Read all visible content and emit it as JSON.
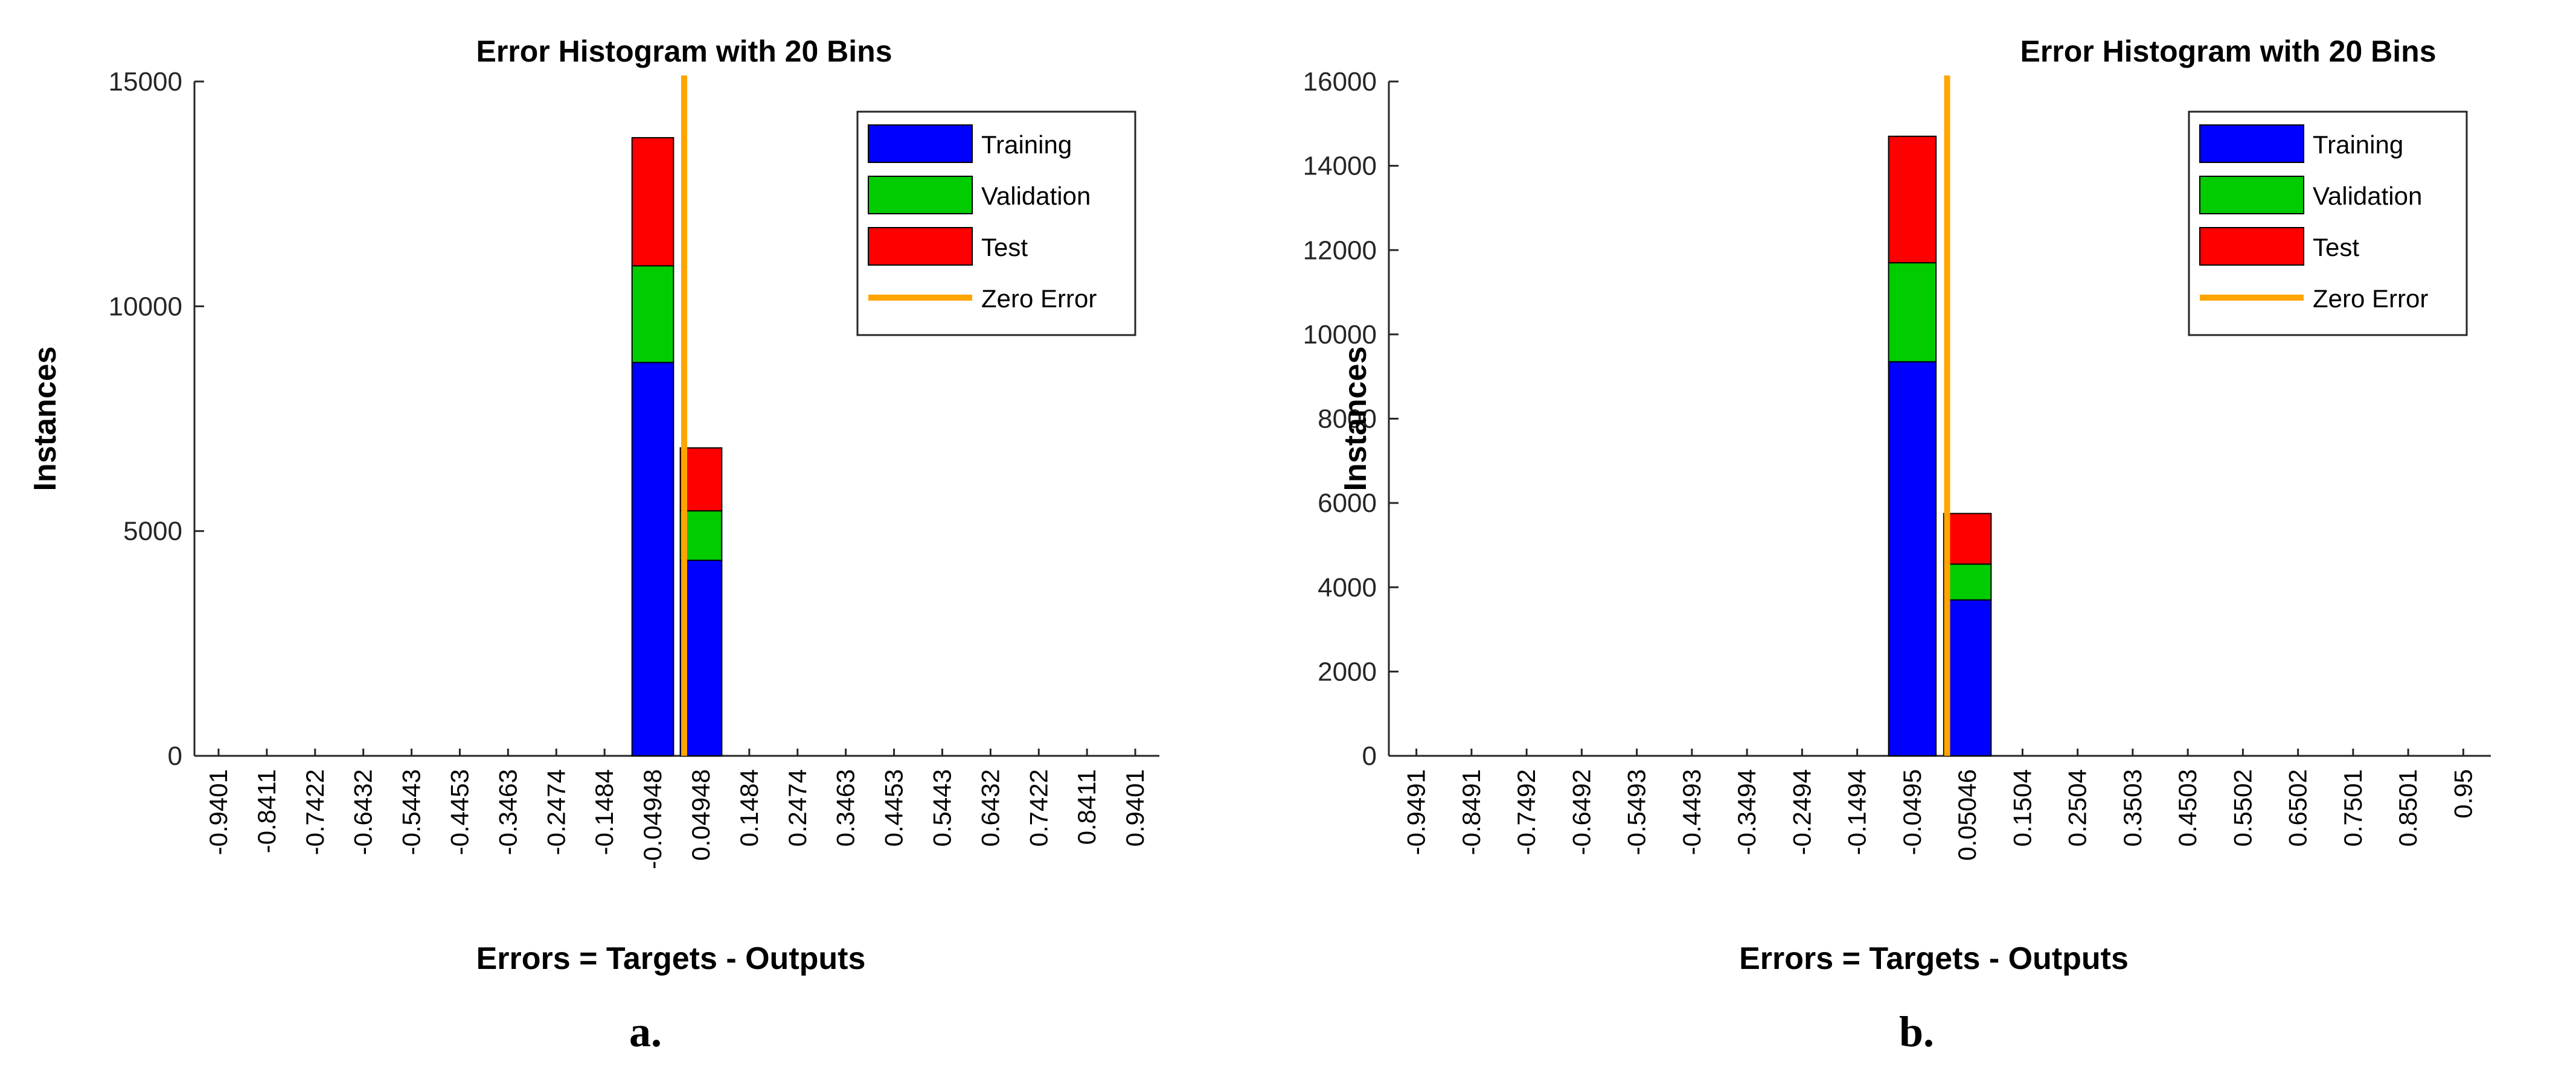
{
  "chart_data": [
    {
      "type": "bar",
      "stacked": true,
      "title": "Error Histogram with 20 Bins",
      "xlabel": "Errors = Targets - Outputs",
      "ylabel": "Instances",
      "ylim": [
        0,
        15000
      ],
      "yticks": [
        0,
        5000,
        10000,
        15000
      ],
      "categories": [
        "-0.9401",
        "-0.8411",
        "-0.7422",
        "-0.6432",
        "-0.5443",
        "-0.4453",
        "-0.3463",
        "-0.2474",
        "-0.1484",
        "-0.04948",
        "0.04948",
        "0.1484",
        "0.2474",
        "0.3463",
        "0.4453",
        "0.5443",
        "0.6432",
        "0.7422",
        "0.8411",
        "0.9401"
      ],
      "series": [
        {
          "name": "Training",
          "color": "#0000ff",
          "values": [
            0,
            0,
            0,
            0,
            0,
            0,
            0,
            0,
            0,
            8750,
            4350,
            0,
            0,
            0,
            0,
            0,
            0,
            0,
            0,
            0
          ]
        },
        {
          "name": "Validation",
          "color": "#00cc00",
          "values": [
            0,
            0,
            0,
            0,
            0,
            0,
            0,
            0,
            0,
            2150,
            1100,
            0,
            0,
            0,
            0,
            0,
            0,
            0,
            0,
            0
          ]
        },
        {
          "name": "Test",
          "color": "#ff0000",
          "values": [
            0,
            0,
            0,
            0,
            0,
            0,
            0,
            0,
            0,
            2850,
            1400,
            0,
            0,
            0,
            0,
            0,
            0,
            0,
            0,
            0
          ]
        }
      ],
      "zero_error": {
        "name": "Zero Error",
        "color": "#ffa500",
        "x": 0
      },
      "legend_position": "top-right",
      "grid": false,
      "caption": "a."
    },
    {
      "type": "bar",
      "stacked": true,
      "title": "Error Histogram with 20 Bins",
      "xlabel": "Errors = Targets - Outputs",
      "ylabel": "Instances",
      "ylim": [
        0,
        16000
      ],
      "yticks": [
        0,
        2000,
        4000,
        6000,
        8000,
        10000,
        12000,
        14000,
        16000
      ],
      "categories": [
        "-0.9491",
        "-0.8491",
        "-0.7492",
        "-0.6492",
        "-0.5493",
        "-0.4493",
        "-0.3494",
        "-0.2494",
        "-0.1494",
        "-0.0495",
        "0.05046",
        "0.1504",
        "0.2504",
        "0.3503",
        "0.4503",
        "0.5502",
        "0.6502",
        "0.7501",
        "0.8501",
        "0.95"
      ],
      "series": [
        {
          "name": "Training",
          "color": "#0000ff",
          "values": [
            0,
            0,
            0,
            0,
            0,
            0,
            0,
            0,
            0,
            9350,
            3700,
            0,
            0,
            0,
            0,
            0,
            0,
            0,
            0,
            0
          ]
        },
        {
          "name": "Validation",
          "color": "#00cc00",
          "values": [
            0,
            0,
            0,
            0,
            0,
            0,
            0,
            0,
            0,
            2350,
            850,
            0,
            0,
            0,
            0,
            0,
            0,
            0,
            0,
            0
          ]
        },
        {
          "name": "Test",
          "color": "#ff0000",
          "values": [
            0,
            0,
            0,
            0,
            0,
            0,
            0,
            0,
            0,
            3000,
            1200,
            0,
            0,
            0,
            0,
            0,
            0,
            0,
            0,
            0
          ]
        }
      ],
      "zero_error": {
        "name": "Zero Error",
        "color": "#ffa500",
        "x": 0
      },
      "legend_position": "top-right",
      "grid": false,
      "caption": "b."
    }
  ]
}
